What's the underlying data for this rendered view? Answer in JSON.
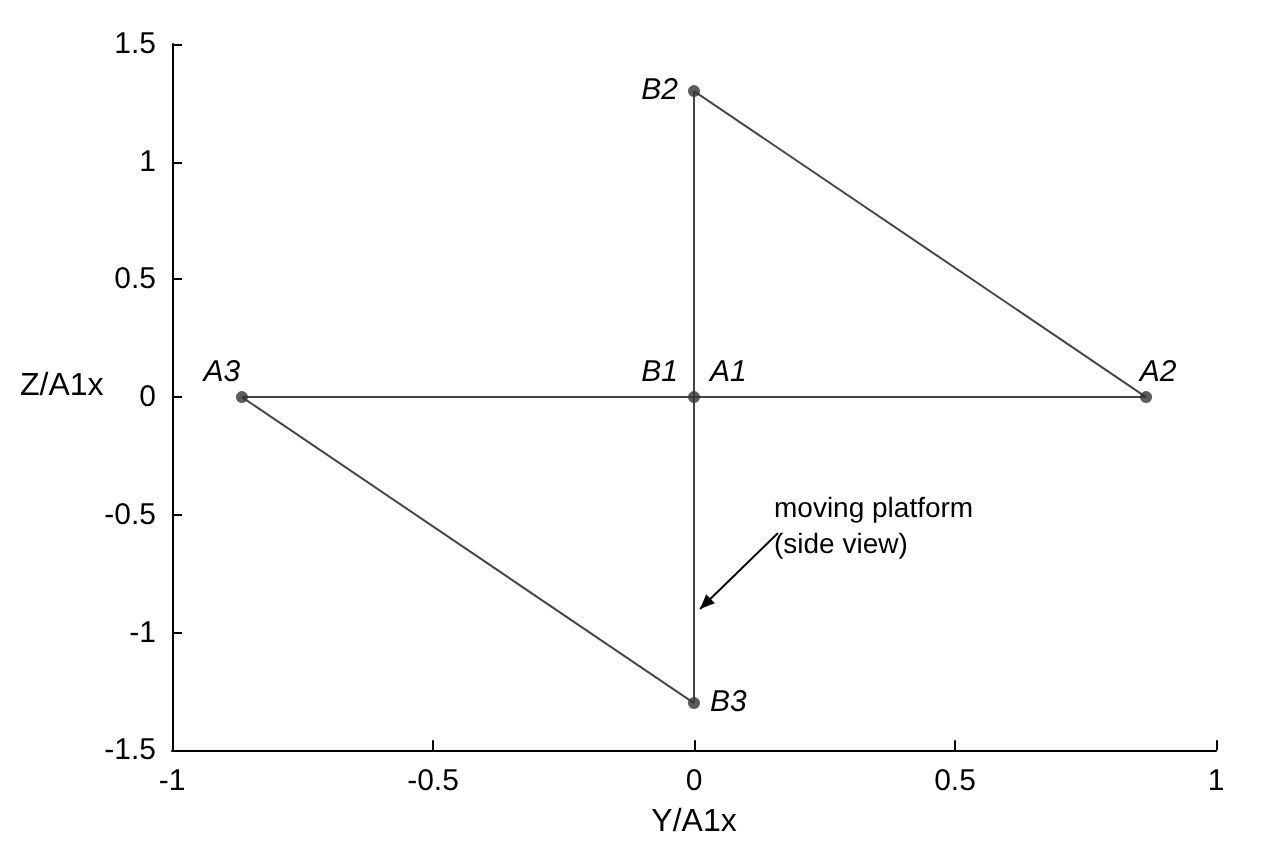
{
  "chart_data": {
    "type": "line",
    "xlabel": "Y/A1x",
    "ylabel": "Z/A1x",
    "xlim": [
      -1,
      1
    ],
    "xticks": [
      -1,
      -0.5,
      0,
      0.5,
      1
    ],
    "ylim": [
      -1.5,
      1.5
    ],
    "yticks": [
      -1.5,
      -1,
      -0.5,
      0,
      0.5,
      1,
      1.5
    ],
    "grid": false,
    "series": [
      {
        "color": "#444444",
        "x": [
          -0.866,
          0.866
        ],
        "values": [
          0,
          0
        ],
        "marker": "none"
      },
      {
        "color": "#444444",
        "x": [
          0,
          0
        ],
        "values": [
          1.3,
          -1.3
        ],
        "marker": "none"
      },
      {
        "color": "#444444",
        "x": [
          0,
          0.866
        ],
        "values": [
          1.3,
          0
        ],
        "marker": "none"
      },
      {
        "color": "#444444",
        "x": [
          -0.866,
          0
        ],
        "values": [
          0,
          -1.3
        ],
        "marker": "none"
      },
      {
        "type": "scatter",
        "color": "#333333",
        "x": [
          0,
          0.866,
          -0.866,
          0,
          0
        ],
        "values": [
          0,
          0,
          0,
          1.3,
          -1.3
        ],
        "marker": "circle"
      }
    ],
    "annotations": [
      {
        "text": "B1",
        "x": 0,
        "y": 0
      },
      {
        "text": "A1",
        "x": 0,
        "y": 0
      },
      {
        "text": "A2",
        "x": 0.866,
        "y": 0
      },
      {
        "text": "A3",
        "x": -0.866,
        "y": 0
      },
      {
        "text": "B2",
        "x": 0,
        "y": 1.3
      },
      {
        "text": "B3",
        "x": 0,
        "y": -1.3
      },
      {
        "text": "moving platform\n(side view)",
        "x": 0,
        "y": -0.9
      }
    ]
  }
}
